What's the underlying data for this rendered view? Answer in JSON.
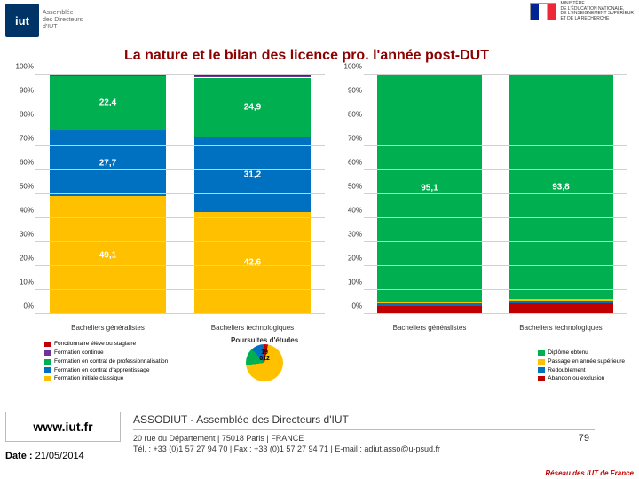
{
  "header": {
    "logo_iut_text": "iut",
    "logo_iut_sub1": "Assemblée",
    "logo_iut_sub2": "des Directeurs",
    "logo_iut_sub3": "d'IUT",
    "ministry_l1": "MINISTÈRE",
    "ministry_l2": "DE L'ÉDUCATION NATIONALE,",
    "ministry_l3": "DE L'ENSEIGNEMENT SUPÉRIEUR",
    "ministry_l4": "ET DE LA RECHERCHE"
  },
  "title": "La nature et le bilan des licence pro. l'année post-DUT",
  "chart_left": {
    "type": "stacked-bar-percent",
    "y_ticks": [
      "0%",
      "10%",
      "20%",
      "30%",
      "40%",
      "50%",
      "60%",
      "70%",
      "80%",
      "90%",
      "100%"
    ],
    "categories": [
      "Bacheliers généralistes",
      "Bacheliers technologiques"
    ],
    "series": [
      {
        "name": "Fonctionnaire élève ou stagiaire",
        "color": "#c00000"
      },
      {
        "name": "Formation continue",
        "color": "#7030a0"
      },
      {
        "name": "Formation en contrat de professionnalisation",
        "color": "#00b050"
      },
      {
        "name": "Formation en contrat d'apprentissage",
        "color": "#0070c0"
      },
      {
        "name": "Formation initiale classique",
        "color": "#ffc000"
      }
    ],
    "stacks": [
      {
        "values": [
          0.5,
          0.3,
          22.4,
          27.7,
          49.1
        ],
        "labels": [
          "",
          "",
          "22,4",
          "27,7",
          "49,1"
        ]
      },
      {
        "values": [
          0.6,
          0.7,
          24.9,
          31.2,
          42.6
        ],
        "labels": [
          "",
          "",
          "24,9",
          "31,2",
          "42,6"
        ]
      }
    ],
    "grid_color": "#d0d0d0",
    "label_color": "#ffffff",
    "label_fontsize": 10
  },
  "chart_right": {
    "type": "stacked-bar-percent",
    "y_ticks": [
      "0%",
      "10%",
      "20%",
      "30%",
      "40%",
      "50%",
      "60%",
      "70%",
      "80%",
      "90%",
      "100%"
    ],
    "categories": [
      "Bacheliers généralistes",
      "Bacheliers technologiques"
    ],
    "series": [
      {
        "name": "Diplôme obtenu",
        "color": "#00b050"
      },
      {
        "name": "Passage en année supérieure",
        "color": "#ffc000"
      },
      {
        "name": "Redoublement",
        "color": "#0070c0"
      },
      {
        "name": "Abandon ou exclusion",
        "color": "#c00000"
      }
    ],
    "stacks": [
      {
        "values": [
          95.1,
          0.5,
          0.9,
          3.5
        ],
        "labels": [
          "95,1",
          "",
          "",
          ""
        ]
      },
      {
        "values": [
          93.8,
          0.6,
          1.1,
          4.5
        ],
        "labels": [
          "93,8",
          "",
          "",
          ""
        ]
      }
    ],
    "grid_color": "#d0d0d0",
    "label_color": "#ffffff",
    "label_fontsize": 10
  },
  "pie": {
    "title": "Poursuites d'études",
    "center_label": "19 012",
    "slices": [
      {
        "color": "#c00000",
        "value": 3
      },
      {
        "color": "#ffc000",
        "value": 70
      },
      {
        "color": "#00b050",
        "value": 15
      },
      {
        "color": "#0070c0",
        "value": 12
      }
    ]
  },
  "footer": {
    "url": "www.iut.fr",
    "date_label": "Date :",
    "date_value": "21/05/2014",
    "assodiut": "ASSODIUT - Assemblée des Directeurs d'IUT",
    "addr1": "20 rue du Département | 75018 Paris | FRANCE",
    "addr2": "Tél. : +33 (0)1 57 27 94 70 | Fax : +33 (0)1 57 27 94 71 | E-mail : adiut.asso@u-psud.fr",
    "page": "79",
    "reseau": "Réseau des IUT de France"
  }
}
